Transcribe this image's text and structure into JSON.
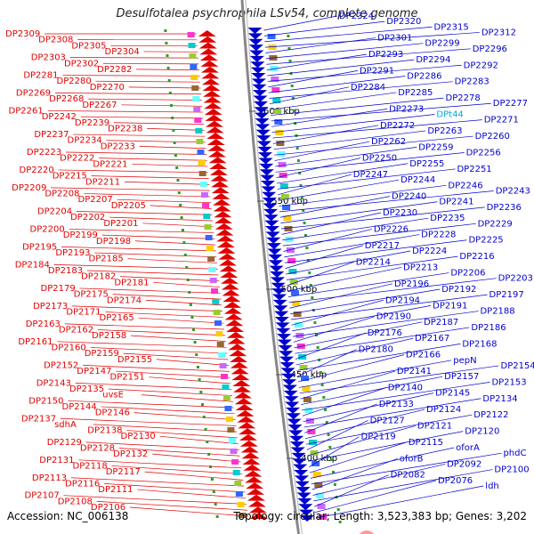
{
  "title": "Desulfotalea psychrophila LSv54, complete genome",
  "footer": {
    "accession": "Accession: NC_006138",
    "summary": "Topology: circular; Length: 3,523,383 bp; Genes: 3,202"
  },
  "scale_labels": [
    "2600 kbp",
    "2550 kbp",
    "2500 kbp",
    "2450 kbp",
    "2400 kbp"
  ],
  "colors": {
    "left_strand": "#e00000",
    "right_strand": "#0000cc",
    "rna_label": "#00aadd",
    "backbone": "#888888"
  },
  "left_labels": [
    "DP2309",
    "DP2308",
    "DP2305",
    "DP2304",
    "DP2303",
    "DP2302",
    "DP2282",
    "DP2281",
    "DP2280",
    "DP2270",
    "DP2269",
    "DP2268",
    "DP2267",
    "DP2261",
    "DP2242",
    "DP2239",
    "DP2238",
    "DP2237",
    "DP2234",
    "DP2233",
    "DP2223",
    "DP2222",
    "DP2221",
    "DP2220",
    "DP2215",
    "DP2211",
    "DP2209",
    "DP2208",
    "DP2207",
    "DP2205",
    "DP2204",
    "DP2202",
    "DP2201",
    "DP2200",
    "DP2199",
    "DP2198",
    "DP2195",
    "DP2193",
    "DP2185",
    "DP2184",
    "DP2183",
    "DP2182",
    "DP2181",
    "DP2179",
    "DP2175",
    "DP2174",
    "DP2173",
    "DP2171",
    "DP2165",
    "DP2163",
    "DP2162",
    "DP2158",
    "DP2161",
    "DP2160",
    "DP2159",
    "DP2155",
    "DP2152",
    "DP2147",
    "DP2151",
    "DP2143",
    "DP2135",
    "uvsE",
    "DP2150",
    "DP2144",
    "DP2146",
    "DP2137",
    "sdhA",
    "DP2138",
    "DP2130",
    "DP2129",
    "DP2128",
    "DP2132",
    "DP2131",
    "DP2118",
    "DP2117",
    "DP2113",
    "DP2116",
    "DP2111",
    "DP2107",
    "DP2108",
    "DP2106"
  ],
  "right_labels": [
    "DP2324",
    "DP2320",
    "DP2315",
    "DP2312",
    "DP2301",
    "DP2299",
    "DP2296",
    "DP2293",
    "DP2294",
    "DP2292",
    "DP2291",
    "DP2286",
    "DP2283",
    "DP2284",
    "DP2285",
    "DP2278",
    "DP2277",
    "DP2273",
    "DPt44",
    "DP2271",
    "DP2272",
    "DP2263",
    "DP2260",
    "DP2262",
    "DP2259",
    "DP2256",
    "DP2250",
    "DP2255",
    "DP2251",
    "DP2247",
    "DP2244",
    "DP2246",
    "DP2243",
    "DP2240",
    "DP2241",
    "DP2236",
    "DP2230",
    "DP2235",
    "DP2229",
    "DP2226",
    "DP2228",
    "DP2225",
    "DP2217",
    "DP2224",
    "DP2216",
    "DP2214",
    "DP2213",
    "DP2206",
    "DP2203",
    "DP2196",
    "DP2192",
    "DP2197",
    "DP2194",
    "DP2191",
    "DP2188",
    "DP2190",
    "DP2187",
    "DP2186",
    "DP2176",
    "DP2167",
    "DP2168",
    "DP2180",
    "DP2166",
    "pepN",
    "DP2154",
    "DP2141",
    "DP2157",
    "DP2153",
    "DP2140",
    "DP2145",
    "DP2134",
    "DP2133",
    "DP2124",
    "DP2122",
    "DP2127",
    "DP2121",
    "DP2120",
    "DP2119",
    "DP2115",
    "oforA",
    "phdC",
    "oforB",
    "DP2092",
    "DP2100",
    "DP2082",
    "DP2076",
    "ldh"
  ]
}
